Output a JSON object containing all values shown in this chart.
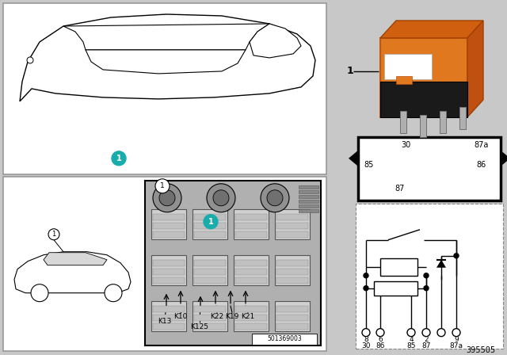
{
  "fig_number": "395505",
  "sub_number": "501369003",
  "bg_color": "#c8c8c8",
  "white": "#ffffff",
  "black": "#000000",
  "orange_relay": "#e07820",
  "teal_dot": "#1aacac",
  "relay_pin_labels": [
    "30",
    "87a",
    "85",
    "86",
    "87"
  ],
  "pin_labels_top": [
    "8",
    "6",
    "4",
    "2",
    "9"
  ],
  "pin_labels_bot": [
    "30",
    "86",
    "85",
    "87",
    "87a"
  ],
  "k_labels": [
    "K13",
    "K10",
    "K125",
    "K22",
    "K19",
    "K21"
  ]
}
